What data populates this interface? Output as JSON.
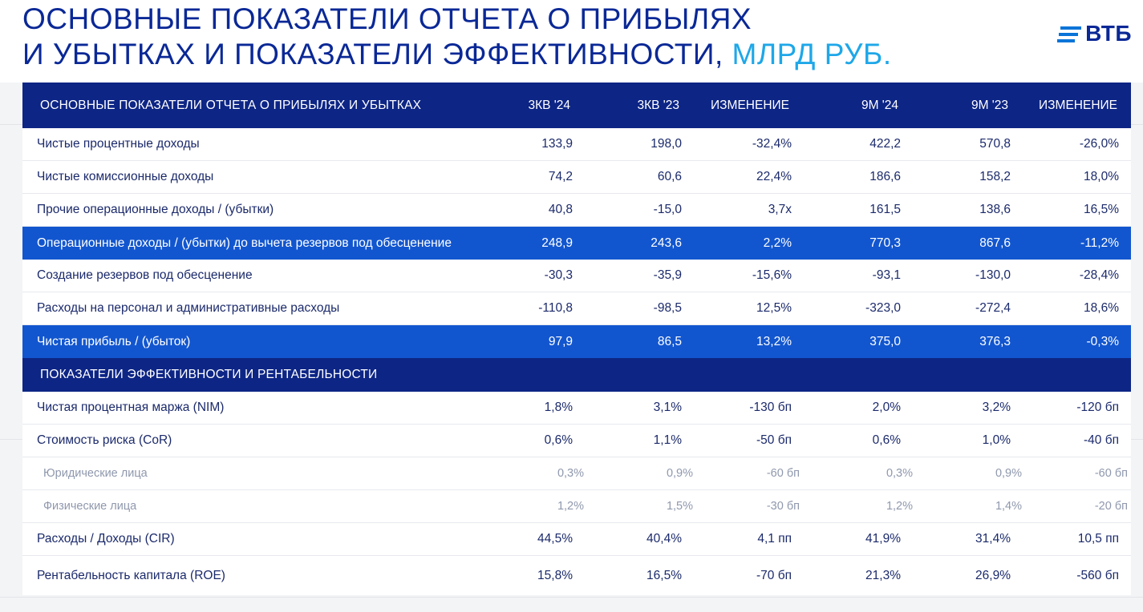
{
  "title": {
    "line1": "ОСНОВНЫЕ ПОКАЗАТЕЛИ ОТЧЕТА О ПРИБЫЛЯХ",
    "line2_main": "И УБЫТКАХ И ПОКАЗАТЕЛИ ЭФФЕКТИВНОСТИ,",
    "line2_accent": "МЛРД РУБ."
  },
  "logo": {
    "text": "ВТБ"
  },
  "colors": {
    "title": "#0a2896",
    "accent": "#1ea7e8",
    "header_bg": "#0d2585",
    "highlight_bg": "#1256cf"
  },
  "table": {
    "header": [
      "ОСНОВНЫЕ ПОКАЗАТЕЛИ ОТЧЕТА О ПРИБЫЛЯХ И УБЫТКАХ",
      "3КВ '24",
      "3КВ '23",
      "ИЗМЕНЕНИЕ",
      "9М '24",
      "9М '23",
      "ИЗМЕНЕНИЕ"
    ],
    "pl_rows": [
      [
        "Чистые процентные доходы",
        "133,9",
        "198,0",
        "-32,4%",
        "422,2",
        "570,8",
        "-26,0%"
      ],
      [
        "Чистые комиссионные доходы",
        "74,2",
        "60,6",
        "22,4%",
        "186,6",
        "158,2",
        "18,0%"
      ],
      [
        "Прочие операционные доходы / (убытки)",
        "40,8",
        "-15,0",
        "3,7x",
        "161,5",
        "138,6",
        "16,5%"
      ],
      [
        "Операционные доходы / (убытки) до вычета резервов под обесценение",
        "248,9",
        "243,6",
        "2,2%",
        "770,3",
        "867,6",
        "-11,2%"
      ],
      [
        "Создание резервов под обесценение",
        "-30,3",
        "-35,9",
        "-15,6%",
        "-93,1",
        "-130,0",
        "-28,4%"
      ],
      [
        "Расходы на персонал и административные расходы",
        "-110,8",
        "-98,5",
        "12,5%",
        "-323,0",
        "-272,4",
        "18,6%"
      ],
      [
        "Чистая прибыль / (убыток)",
        "97,9",
        "86,5",
        "13,2%",
        "375,0",
        "376,3",
        "-0,3%"
      ]
    ],
    "section2_title": "ПОКАЗАТЕЛИ ЭФФЕКТИВНОСТИ И РЕНТАБЕЛЬНОСТИ",
    "eff_rows": [
      [
        "Чистая процентная маржа (NIM)",
        "1,8%",
        "3,1%",
        "-130 бп",
        "2,0%",
        "3,2%",
        "-120 бп"
      ],
      [
        "Стоимость риска (CoR)",
        "0,6%",
        "1,1%",
        "-50 бп",
        "0,6%",
        "1,0%",
        "-40 бп"
      ],
      [
        "Юридические лица",
        "0,3%",
        "0,9%",
        "-60 бп",
        "0,3%",
        "0,9%",
        "-60 бп"
      ],
      [
        "Физические лица",
        "1,2%",
        "1,5%",
        "-30 бп",
        "1,2%",
        "1,4%",
        "-20 бп"
      ],
      [
        "Расходы / Доходы (CIR)",
        "44,5%",
        "40,4%",
        "4,1 пп",
        "41,9%",
        "31,4%",
        "10,5 пп"
      ],
      [
        "Рентабельность капитала (ROE)",
        "15,8%",
        "16,5%",
        "-70 бп",
        "21,3%",
        "26,9%",
        "-560 бп"
      ]
    ]
  }
}
